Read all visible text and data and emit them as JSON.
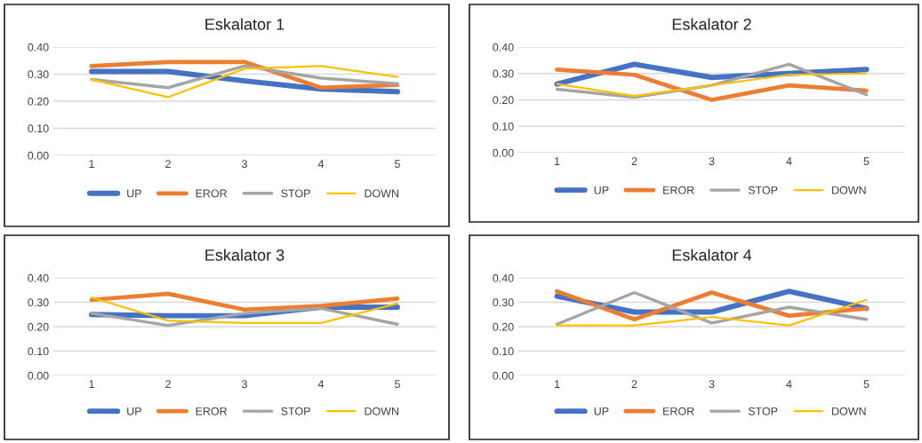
{
  "chart_data": [
    {
      "type": "line",
      "title": "Eskalator 1",
      "categories": [
        "1",
        "2",
        "3",
        "4",
        "5"
      ],
      "ylim": [
        0,
        0.4
      ],
      "yticks": [
        {
          "value": 0,
          "label": "0.00"
        },
        {
          "value": 0.1,
          "label": "0.10"
        },
        {
          "value": 0.2,
          "label": "0.20"
        },
        {
          "value": 0.3,
          "label": "0.30"
        },
        {
          "value": 0.4,
          "label": "0.40"
        }
      ],
      "grid": "y",
      "legend": "bottom",
      "series": [
        {
          "name": "UP",
          "color": "#4472c4",
          "values": [
            0.31,
            0.31,
            0.275,
            0.245,
            0.235
          ]
        },
        {
          "name": "EROR",
          "color": "#ed7d31",
          "values": [
            0.33,
            0.345,
            0.345,
            0.25,
            0.26
          ]
        },
        {
          "name": "STOP",
          "color": "#a5a5a5",
          "values": [
            0.28,
            0.25,
            0.33,
            0.285,
            0.265
          ]
        },
        {
          "name": "DOWN",
          "color": "#ffc000",
          "values": [
            0.28,
            0.215,
            0.32,
            0.33,
            0.29
          ]
        }
      ]
    },
    {
      "type": "line",
      "title": "Eskalator 2",
      "categories": [
        "1",
        "2",
        "3",
        "4",
        "5"
      ],
      "ylim": [
        0,
        0.4
      ],
      "yticks": [
        {
          "value": 0,
          "label": "0.00"
        },
        {
          "value": 0.1,
          "label": "0.10"
        },
        {
          "value": 0.2,
          "label": "0.20"
        },
        {
          "value": 0.3,
          "label": "0.30"
        },
        {
          "value": 0.4,
          "label": "0.40"
        }
      ],
      "grid": "y",
      "legend": "bottom",
      "series": [
        {
          "name": "UP",
          "color": "#4472c4",
          "values": [
            0.26,
            0.335,
            0.285,
            0.3,
            0.315
          ]
        },
        {
          "name": "EROR",
          "color": "#ed7d31",
          "values": [
            0.315,
            0.295,
            0.2,
            0.255,
            0.235
          ]
        },
        {
          "name": "STOP",
          "color": "#a5a5a5",
          "values": [
            0.24,
            0.21,
            0.255,
            0.335,
            0.22
          ]
        },
        {
          "name": "DOWN",
          "color": "#ffc000",
          "values": [
            0.26,
            0.215,
            0.255,
            0.295,
            0.3
          ]
        }
      ]
    },
    {
      "type": "line",
      "title": "Eskalator 3",
      "categories": [
        "1",
        "2",
        "3",
        "4",
        "5"
      ],
      "ylim": [
        0,
        0.4
      ],
      "yticks": [
        {
          "value": 0,
          "label": "0.00"
        },
        {
          "value": 0.1,
          "label": "0.10"
        },
        {
          "value": 0.2,
          "label": "0.20"
        },
        {
          "value": 0.3,
          "label": "0.30"
        },
        {
          "value": 0.4,
          "label": "0.40"
        }
      ],
      "grid": "y",
      "legend": "bottom",
      "series": [
        {
          "name": "UP",
          "color": "#4472c4",
          "values": [
            0.25,
            0.245,
            0.245,
            0.28,
            0.28
          ]
        },
        {
          "name": "EROR",
          "color": "#ed7d31",
          "values": [
            0.31,
            0.335,
            0.27,
            0.285,
            0.315
          ]
        },
        {
          "name": "STOP",
          "color": "#a5a5a5",
          "values": [
            0.255,
            0.205,
            0.255,
            0.275,
            0.21
          ]
        },
        {
          "name": "DOWN",
          "color": "#ffc000",
          "values": [
            0.32,
            0.225,
            0.215,
            0.215,
            0.295
          ]
        }
      ]
    },
    {
      "type": "line",
      "title": "Eskalator 4",
      "categories": [
        "1",
        "2",
        "3",
        "4",
        "5"
      ],
      "ylim": [
        0,
        0.4
      ],
      "yticks": [
        {
          "value": 0,
          "label": "0.00"
        },
        {
          "value": 0.1,
          "label": "0.10"
        },
        {
          "value": 0.2,
          "label": "0.20"
        },
        {
          "value": 0.3,
          "label": "0.30"
        },
        {
          "value": 0.4,
          "label": "0.40"
        }
      ],
      "grid": "y",
      "legend": "bottom",
      "series": [
        {
          "name": "UP",
          "color": "#4472c4",
          "values": [
            0.325,
            0.26,
            0.26,
            0.345,
            0.275
          ]
        },
        {
          "name": "EROR",
          "color": "#ed7d31",
          "values": [
            0.345,
            0.23,
            0.34,
            0.245,
            0.275
          ]
        },
        {
          "name": "STOP",
          "color": "#a5a5a5",
          "values": [
            0.21,
            0.34,
            0.215,
            0.28,
            0.23
          ]
        },
        {
          "name": "DOWN",
          "color": "#ffc000",
          "values": [
            0.205,
            0.205,
            0.24,
            0.205,
            0.31
          ]
        }
      ]
    }
  ]
}
